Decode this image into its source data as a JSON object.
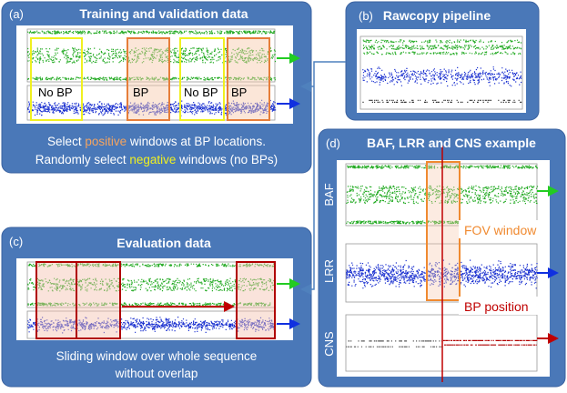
{
  "panel_a": {
    "label": "(a)",
    "title": "Training and validation data",
    "windows": [
      "No BP",
      "BP",
      "No BP",
      "BP"
    ],
    "caption": {
      "line1": {
        "before": "Select ",
        "highlight": "positive",
        "after": " windows at BP locations."
      },
      "line2": {
        "before": "Randomly select ",
        "highlight": "negative",
        "after": " windows (no BPs)"
      }
    }
  },
  "panel_b": {
    "label": "(b)",
    "title": "Rawcopy pipeline"
  },
  "panel_c": {
    "label": "(c)",
    "title": "Evaluation data",
    "caption": [
      "Sliding window over whole sequence",
      "without overlap"
    ]
  },
  "panel_d": {
    "label": "(d)",
    "title": "BAF, LRR and CNS example",
    "tracks": [
      "BAF",
      "LRR",
      "CNS"
    ],
    "annotations": {
      "fov": "FOV window",
      "bp": "BP position"
    }
  }
}
